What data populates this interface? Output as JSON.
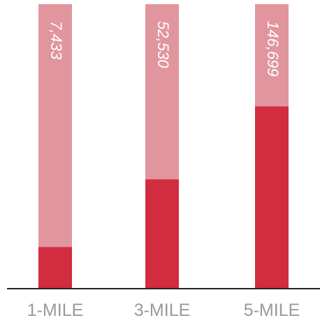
{
  "chart_data": {
    "type": "bar",
    "categories": [
      "1-MILE",
      "3-MILE",
      "5-MILE"
    ],
    "values": [
      7433,
      52530,
      146699
    ],
    "value_labels": [
      "7,433",
      "52,530",
      "146,699"
    ],
    "color": "#d12c40",
    "track_color": "#e1959d",
    "scale": "sqrt",
    "ylim": [
      0,
      358500
    ]
  }
}
